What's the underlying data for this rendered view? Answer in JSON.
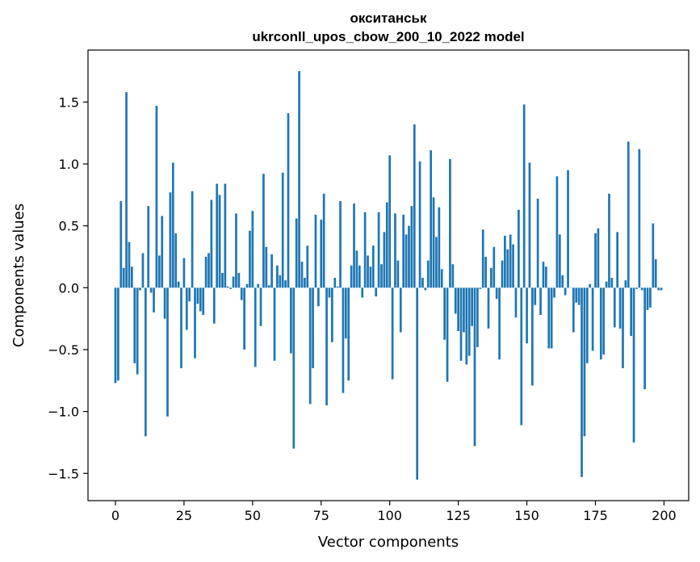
{
  "chart_data": {
    "type": "bar",
    "title_line1": "окситанськ",
    "title_line2": "ukrconll_upos_cbow_200_10_2022 model",
    "xlabel": "Vector components",
    "ylabel": "Components values",
    "xlim": [
      -10,
      209
    ],
    "ylim": [
      -1.72,
      1.92
    ],
    "xticks": [
      0,
      25,
      50,
      75,
      100,
      125,
      150,
      175,
      200
    ],
    "xtick_labels": [
      "0",
      "25",
      "50",
      "75",
      "100",
      "125",
      "150",
      "175",
      "200"
    ],
    "yticks": [
      -1.5,
      -1.0,
      -0.5,
      0.0,
      0.5,
      1.0,
      1.5
    ],
    "ytick_labels": [
      "−1.5",
      "−1.0",
      "−0.5",
      "0.0",
      "0.5",
      "1.0",
      "1.5"
    ],
    "bar_color": "#1f77b4",
    "grid": false,
    "values": [
      -0.77,
      -0.75,
      0.7,
      0.16,
      1.58,
      0.37,
      0.17,
      -0.61,
      -0.7,
      -0.02,
      0.28,
      -1.2,
      0.66,
      -0.04,
      -0.2,
      1.47,
      0.26,
      0.58,
      -0.25,
      -1.04,
      0.77,
      1.01,
      0.44,
      0.05,
      -0.65,
      0.24,
      -0.34,
      -0.11,
      0.78,
      -0.57,
      -0.13,
      -0.19,
      -0.22,
      0.25,
      0.28,
      0.71,
      -0.29,
      0.84,
      0.75,
      0.12,
      0.84,
      0.01,
      -0.01,
      0.09,
      0.6,
      0.12,
      -0.1,
      -0.5,
      0.03,
      0.46,
      0.62,
      -0.64,
      0.03,
      -0.31,
      0.92,
      0.33,
      0.02,
      0.27,
      -0.59,
      0.18,
      0.1,
      0.93,
      0.06,
      1.41,
      -0.53,
      -1.3,
      0.56,
      1.75,
      0.21,
      0.08,
      0.34,
      -0.94,
      -0.65,
      0.59,
      -0.15,
      0.55,
      0.76,
      -0.95,
      -0.08,
      -0.44,
      0.08,
      0.01,
      0.7,
      -0.85,
      -0.41,
      -0.75,
      0.18,
      0.68,
      0.3,
      0.18,
      -0.08,
      0.61,
      0.26,
      0.17,
      0.34,
      -0.07,
      0.61,
      0.19,
      0.45,
      0.69,
      1.07,
      -0.74,
      0.6,
      0.22,
      -0.36,
      0.59,
      0.43,
      0.5,
      0.66,
      1.32,
      -1.55,
      1.02,
      0.08,
      -0.02,
      0.22,
      1.11,
      0.73,
      0.41,
      0.65,
      0.15,
      -0.42,
      -0.76,
      1.04,
      0.19,
      -0.21,
      -0.35,
      -0.59,
      -0.36,
      -0.62,
      -0.55,
      -0.31,
      -1.28,
      -0.48,
      -0.01,
      0.47,
      0.25,
      -0.33,
      0.16,
      0.33,
      -0.09,
      -0.58,
      0.22,
      0.42,
      0.31,
      0.43,
      0.35,
      -0.24,
      0.63,
      -1.11,
      1.48,
      -0.45,
      1.01,
      -0.79,
      -0.14,
      0.72,
      -0.22,
      0.21,
      0.17,
      -0.49,
      -0.49,
      -0.08,
      0.9,
      0.43,
      0.1,
      -0.06,
      0.95,
      0.0,
      -0.36,
      -0.12,
      -0.14,
      -1.53,
      -1.2,
      -0.61,
      0.03,
      -0.51,
      0.44,
      0.48,
      -0.58,
      -0.54,
      0.05,
      0.76,
      0.08,
      -0.32,
      0.45,
      -0.33,
      -0.65,
      0.06,
      1.18,
      -0.39,
      -1.25,
      -0.01,
      1.12,
      -0.02,
      -0.82,
      -0.18,
      -0.16,
      0.52,
      0.23,
      -0.02,
      -0.02
    ]
  }
}
